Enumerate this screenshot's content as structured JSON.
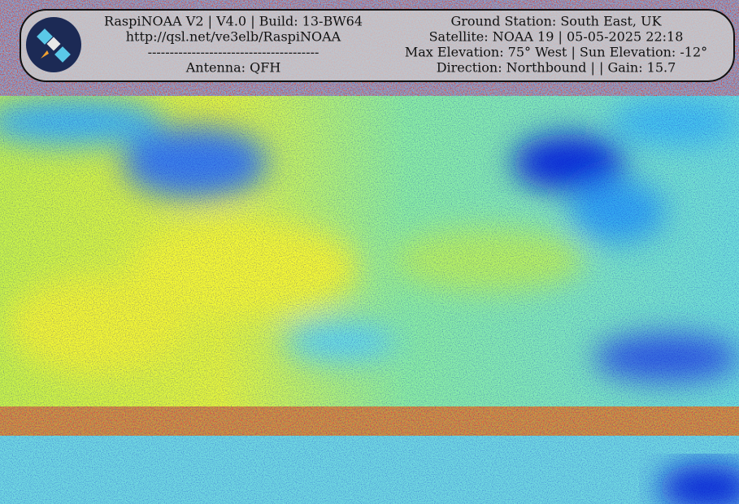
{
  "header": {
    "left": [
      "RaspiNOAA V2 | V4.0 | Build: 13-BW64",
      "http://qsl.net/ve3elb/RaspiNOAA",
      "---------------------------------------",
      "Antenna: QFH"
    ],
    "right": [
      "Ground Station: South East, UK",
      "Satellite: NOAA 19 | 05-05-2025 22:18",
      "Max Elevation: 75° West | Sun Elevation: -12°",
      "Direction: Northbound | | Gain: 15.7"
    ]
  }
}
